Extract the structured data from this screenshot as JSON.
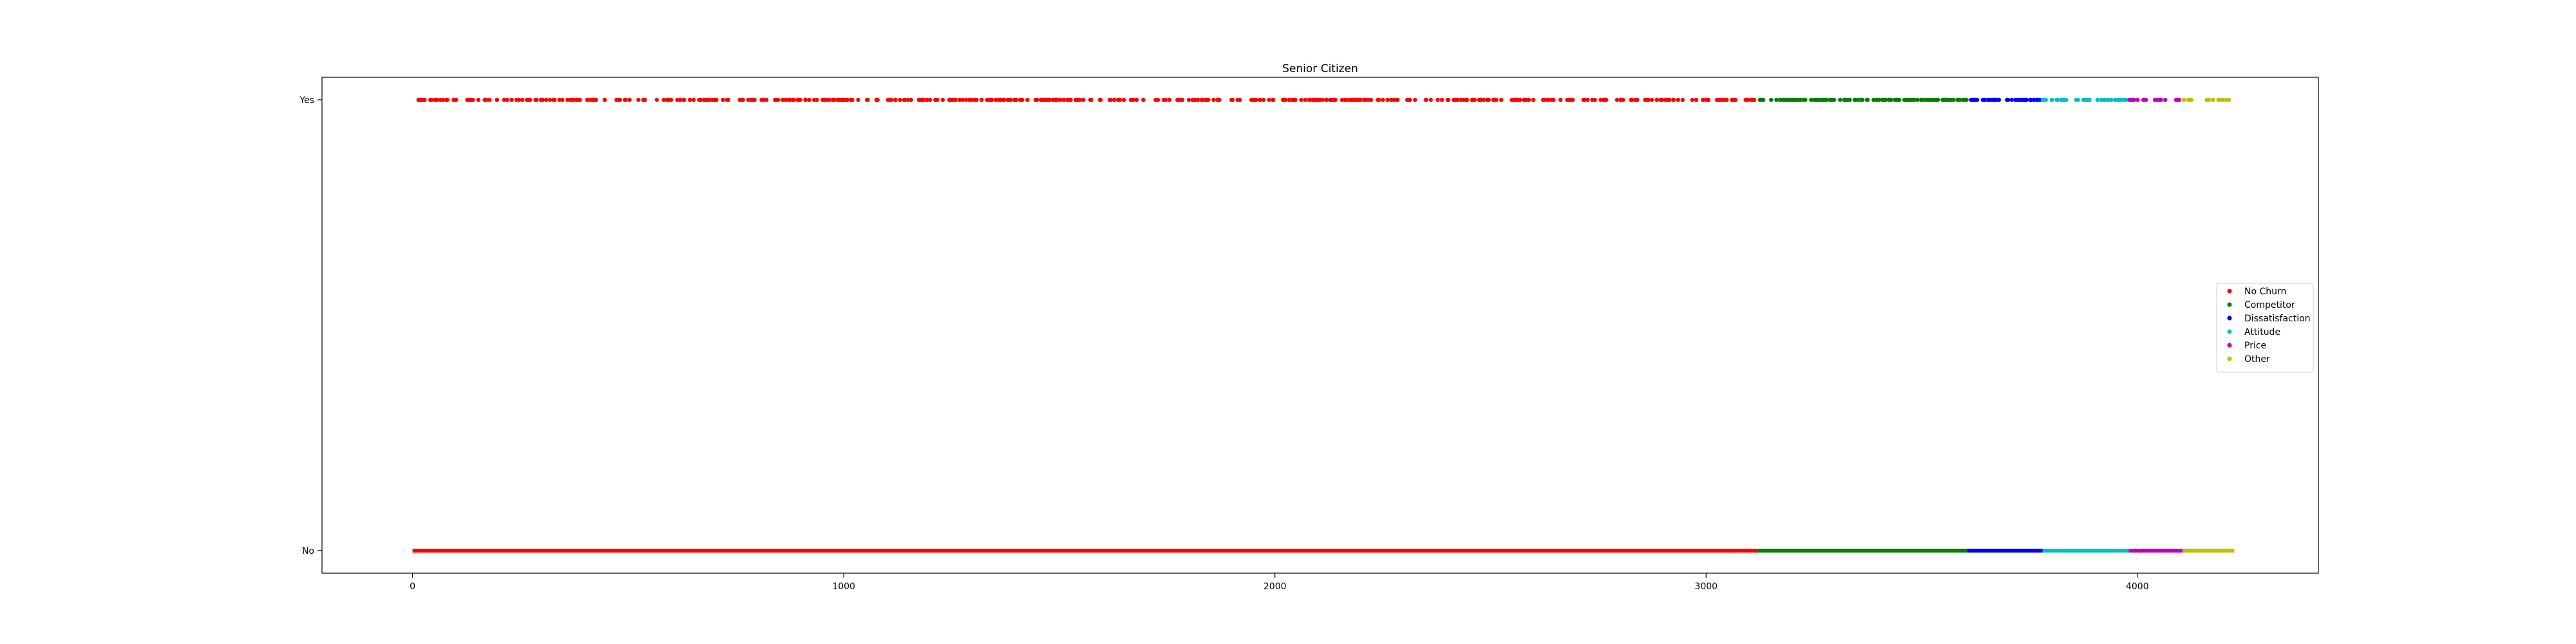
{
  "chart_data": {
    "type": "scatter",
    "title": "Senior Citizen",
    "xlabel": "",
    "ylabel": "",
    "xlim": [
      -210,
      4420
    ],
    "xticks": [
      0,
      1000,
      2000,
      3000,
      4000
    ],
    "yticks": [
      {
        "value": 0,
        "label": "No"
      },
      {
        "value": 1,
        "label": "Yes"
      }
    ],
    "legend_position": "center-right",
    "grid": false,
    "series": [
      {
        "name": "No Churn",
        "color": "#ff0000",
        "range": [
          0,
          3120
        ],
        "yes_count": 520
      },
      {
        "name": "Competitor",
        "color": "#008000",
        "range": [
          3120,
          3605
        ],
        "yes_count": 120
      },
      {
        "name": "Dissatisfaction",
        "color": "#0000ff",
        "range": [
          3605,
          3780
        ],
        "yes_count": 40
      },
      {
        "name": "Attitude",
        "color": "#00bfbf",
        "range": [
          3780,
          3980
        ],
        "yes_count": 45
      },
      {
        "name": "Price",
        "color": "#bf00bf",
        "range": [
          3980,
          4105
        ],
        "yes_count": 25
      },
      {
        "name": "Other",
        "color": "#bfbf00",
        "range": [
          4105,
          4225
        ],
        "yes_count": 14
      }
    ]
  }
}
